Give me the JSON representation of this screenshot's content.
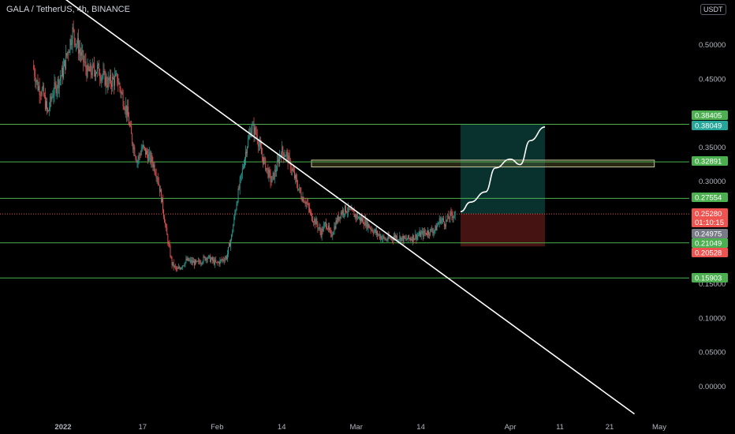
{
  "header": {
    "title": "GALA / TetherUS, 4h, BINANCE",
    "currency_badge": "USDT"
  },
  "colors": {
    "background": "#000000",
    "up_candle": "#26a69a",
    "down_candle": "#ef5350",
    "level_line": "#4caf50",
    "trendline": "#ffffff",
    "target_zone": "#0b3b36",
    "stop_zone": "#4a1414",
    "current_price_line": "#ef5350",
    "consolidation_box": "#c8c8a0"
  },
  "chart_data": {
    "type": "candlestick",
    "title": "GALA / TetherUS, 4h, BINANCE",
    "y_unit": "USDT",
    "ylim": [
      -0.04,
      0.56
    ],
    "y_ticks": [
      0.0,
      0.05,
      0.1,
      0.15,
      0.2,
      0.25,
      0.3,
      0.35,
      0.4,
      0.45,
      0.5
    ],
    "y_tick_labels": [
      "0.00000",
      "0.05000",
      "0.10000",
      "0.15000",
      "0.20000",
      "0.25000",
      "0.30000",
      "0.35000",
      "0.40000",
      "0.45000",
      "0.50000"
    ],
    "x_tick_labels": [
      "2022",
      "17",
      "Feb",
      "14",
      "Mar",
      "14",
      "Apr",
      "11",
      "21",
      "May"
    ],
    "price_path": [
      {
        "date": "2021-12-26",
        "price": 0.47
      },
      {
        "date": "2021-12-27",
        "price": 0.44
      },
      {
        "date": "2021-12-28",
        "price": 0.43
      },
      {
        "date": "2021-12-29",
        "price": 0.4
      },
      {
        "date": "2021-12-30",
        "price": 0.43
      },
      {
        "date": "2022-01-01",
        "price": 0.46
      },
      {
        "date": "2022-01-02",
        "price": 0.49
      },
      {
        "date": "2022-01-03",
        "price": 0.52
      },
      {
        "date": "2022-01-04",
        "price": 0.5
      },
      {
        "date": "2022-01-05",
        "price": 0.48
      },
      {
        "date": "2022-01-06",
        "price": 0.46
      },
      {
        "date": "2022-01-08",
        "price": 0.465
      },
      {
        "date": "2022-01-10",
        "price": 0.445
      },
      {
        "date": "2022-01-12",
        "price": 0.45
      },
      {
        "date": "2022-01-14",
        "price": 0.4
      },
      {
        "date": "2022-01-15",
        "price": 0.36
      },
      {
        "date": "2022-01-16",
        "price": 0.33
      },
      {
        "date": "2022-01-17",
        "price": 0.35
      },
      {
        "date": "2022-01-18",
        "price": 0.34
      },
      {
        "date": "2022-01-19",
        "price": 0.33
      },
      {
        "date": "2022-01-20",
        "price": 0.31
      },
      {
        "date": "2022-01-21",
        "price": 0.27
      },
      {
        "date": "2022-01-22",
        "price": 0.22
      },
      {
        "date": "2022-01-23",
        "price": 0.18
      },
      {
        "date": "2022-01-24",
        "price": 0.17
      },
      {
        "date": "2022-01-26",
        "price": 0.185
      },
      {
        "date": "2022-01-28",
        "price": 0.18
      },
      {
        "date": "2022-01-30",
        "price": 0.19
      },
      {
        "date": "2022-02-01",
        "price": 0.18
      },
      {
        "date": "2022-02-03",
        "price": 0.19
      },
      {
        "date": "2022-02-04",
        "price": 0.22
      },
      {
        "date": "2022-02-05",
        "price": 0.27
      },
      {
        "date": "2022-02-06",
        "price": 0.31
      },
      {
        "date": "2022-02-07",
        "price": 0.35
      },
      {
        "date": "2022-02-08",
        "price": 0.38
      },
      {
        "date": "2022-02-09",
        "price": 0.37
      },
      {
        "date": "2022-02-10",
        "price": 0.34
      },
      {
        "date": "2022-02-11",
        "price": 0.32
      },
      {
        "date": "2022-02-12",
        "price": 0.3
      },
      {
        "date": "2022-02-13",
        "price": 0.32
      },
      {
        "date": "2022-02-14",
        "price": 0.345
      },
      {
        "date": "2022-02-15",
        "price": 0.34
      },
      {
        "date": "2022-02-16",
        "price": 0.32
      },
      {
        "date": "2022-02-17",
        "price": 0.3
      },
      {
        "date": "2022-02-18",
        "price": 0.28
      },
      {
        "date": "2022-02-19",
        "price": 0.27
      },
      {
        "date": "2022-02-20",
        "price": 0.25
      },
      {
        "date": "2022-02-21",
        "price": 0.24
      },
      {
        "date": "2022-02-22",
        "price": 0.225
      },
      {
        "date": "2022-02-23",
        "price": 0.24
      },
      {
        "date": "2022-02-24",
        "price": 0.22
      },
      {
        "date": "2022-02-25",
        "price": 0.24
      },
      {
        "date": "2022-02-26",
        "price": 0.255
      },
      {
        "date": "2022-02-27",
        "price": 0.26
      },
      {
        "date": "2022-02-28",
        "price": 0.255
      },
      {
        "date": "2022-03-01",
        "price": 0.25
      },
      {
        "date": "2022-03-02",
        "price": 0.245
      },
      {
        "date": "2022-03-03",
        "price": 0.24
      },
      {
        "date": "2022-03-05",
        "price": 0.225
      },
      {
        "date": "2022-03-07",
        "price": 0.215
      },
      {
        "date": "2022-03-09",
        "price": 0.22
      },
      {
        "date": "2022-03-11",
        "price": 0.215
      },
      {
        "date": "2022-03-13",
        "price": 0.22
      },
      {
        "date": "2022-03-15",
        "price": 0.225
      },
      {
        "date": "2022-03-17",
        "price": 0.23
      },
      {
        "date": "2022-03-18",
        "price": 0.245
      },
      {
        "date": "2022-03-19",
        "price": 0.24
      },
      {
        "date": "2022-03-20",
        "price": 0.25
      },
      {
        "date": "2022-03-21",
        "price": 0.253
      }
    ],
    "levels": [
      {
        "label": "0.38405",
        "value": 0.38405,
        "tag_color": "#4caf50"
      },
      {
        "label": "0.38049",
        "value": 0.38049,
        "tag_color": "#26a69a"
      },
      {
        "label": "0.32891",
        "value": 0.32891,
        "tag_color": "#4caf50"
      },
      {
        "label": "0.27554",
        "value": 0.27554,
        "tag_color": "#4caf50"
      },
      {
        "label": "0.24975",
        "value": 0.24975,
        "tag_color": "#787b86"
      },
      {
        "label": "0.21049",
        "value": 0.21049,
        "tag_color": "#4caf50"
      },
      {
        "label": "0.20528",
        "value": 0.20528,
        "tag_color": "#ef5350"
      },
      {
        "label": "0.15903",
        "value": 0.15903,
        "tag_color": "#4caf50"
      }
    ],
    "horizontal_lines": [
      0.384,
      0.329,
      0.2755,
      0.2105,
      0.159
    ],
    "current_price": {
      "label": "0.25280",
      "value": 0.2528,
      "countdown": "01:10:15"
    },
    "trendline": [
      {
        "date": "2021-12-30",
        "price": 0.58
      },
      {
        "date": "2022-04-26",
        "price": -0.04
      }
    ],
    "consolidation_box": {
      "date_from": "2022-02-20",
      "date_to": "2022-04-30",
      "price_high": 0.3315,
      "price_low": 0.3215
    },
    "long_position": {
      "date_from": "2022-03-22",
      "date_to": "2022-04-08",
      "entry": 0.2528,
      "target": 0.384,
      "stop": 0.2052
    },
    "projection_path": [
      {
        "date": "2022-03-22",
        "price": 0.256
      },
      {
        "date": "2022-03-24",
        "price": 0.27
      },
      {
        "date": "2022-03-27",
        "price": 0.285
      },
      {
        "date": "2022-03-29",
        "price": 0.32
      },
      {
        "date": "2022-04-01",
        "price": 0.333
      },
      {
        "date": "2022-04-03",
        "price": 0.325
      },
      {
        "date": "2022-04-05",
        "price": 0.36
      },
      {
        "date": "2022-04-08",
        "price": 0.38
      }
    ]
  }
}
